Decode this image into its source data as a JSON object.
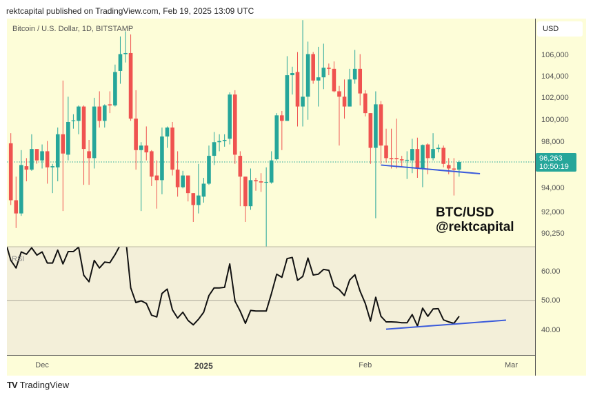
{
  "header": {
    "published": "rektcapital published on TradingView.com, Feb 19, 2025 13:09 UTC"
  },
  "legend": {
    "symbol": "Bitcoin / U.S. Dollar, 1D, BITSTAMP",
    "rsi": "RSI"
  },
  "price_axis": {
    "currency": "USD",
    "last_price": "96,263",
    "countdown": "10:50:19"
  },
  "watermark": {
    "line1": "BTC/USD",
    "line2": "@rektcapital"
  },
  "footer": {
    "brand_mark": "TV",
    "brand": "TradingView"
  },
  "colors": {
    "up": "#26a69a",
    "down": "#ef5350",
    "background": "#fdfdd8",
    "rsi_background": "#f3efd9",
    "trendline": "#3b5bdb",
    "rsi_line": "#111111"
  },
  "chart_data": {
    "type": "candlestick",
    "title": "Bitcoin / U.S. Dollar, 1D, BITSTAMP",
    "price_scale": "log",
    "ylim": [
      89500,
      109000
    ],
    "price_ticks": [
      {
        "value": 106000,
        "label": "106,000"
      },
      {
        "value": 104000,
        "label": "104,000"
      },
      {
        "value": 102000,
        "label": "102,000"
      },
      {
        "value": 100000,
        "label": "100,000"
      },
      {
        "value": 98000,
        "label": "98,000"
      },
      {
        "value": 94000,
        "label": "94,000"
      },
      {
        "value": 92000,
        "label": "92,000"
      },
      {
        "value": 90250,
        "label": "90,250"
      }
    ],
    "time_ticks": [
      {
        "date": "2024-12-01",
        "label": "Dec",
        "bold": false
      },
      {
        "date": "2025-01-01",
        "label": "2025",
        "bold": true
      },
      {
        "date": "2025-02-01",
        "label": "Feb",
        "bold": false
      },
      {
        "date": "2025-03-01",
        "label": "Mar",
        "bold": false
      }
    ],
    "last_price": 96263,
    "candle_columns": [
      "date",
      "open",
      "high",
      "low",
      "close"
    ],
    "candles": [
      [
        "2024-11-25",
        97900,
        98800,
        92600,
        93000
      ],
      [
        "2024-11-26",
        93000,
        95000,
        90700,
        91900
      ],
      [
        "2024-11-27",
        91900,
        97300,
        91700,
        96000
      ],
      [
        "2024-11-28",
        95900,
        96600,
        94600,
        95600
      ],
      [
        "2024-11-29",
        95600,
        98700,
        95500,
        97400
      ],
      [
        "2024-11-30",
        97400,
        97400,
        96100,
        96400
      ],
      [
        "2024-12-01",
        96400,
        97800,
        95700,
        97200
      ],
      [
        "2024-12-02",
        97200,
        98100,
        94400,
        95800
      ],
      [
        "2024-12-03",
        95800,
        96100,
        93600,
        95900
      ],
      [
        "2024-12-04",
        95800,
        99300,
        94600,
        98700
      ],
      [
        "2024-12-05",
        98700,
        103600,
        92100,
        97000
      ],
      [
        "2024-12-06",
        96900,
        102100,
        96400,
        99800
      ],
      [
        "2024-12-07",
        99900,
        100500,
        99200,
        99950
      ],
      [
        "2024-12-08",
        99900,
        101300,
        98700,
        101200
      ],
      [
        "2024-12-09",
        101200,
        101300,
        94300,
        97400
      ],
      [
        "2024-12-10",
        97200,
        98200,
        94300,
        96600
      ],
      [
        "2024-12-11",
        96600,
        102000,
        95700,
        101200
      ],
      [
        "2024-12-12",
        101200,
        102600,
        99300,
        99900
      ],
      [
        "2024-12-13",
        99900,
        101400,
        99300,
        101300
      ],
      [
        "2024-12-14",
        101400,
        102600,
        100600,
        101300
      ],
      [
        "2024-12-15",
        101300,
        105100,
        101200,
        104400
      ],
      [
        "2024-12-16",
        104500,
        107800,
        103300,
        106100
      ],
      [
        "2024-12-17",
        106100,
        108300,
        105300,
        106200
      ],
      [
        "2024-12-18",
        106200,
        108000,
        99900,
        100100
      ],
      [
        "2024-12-19",
        100100,
        102700,
        95600,
        97300
      ],
      [
        "2024-12-20",
        97300,
        98000,
        92100,
        97700
      ],
      [
        "2024-12-21",
        97700,
        99400,
        96400,
        97100
      ],
      [
        "2024-12-22",
        97200,
        97300,
        94200,
        95000
      ],
      [
        "2024-12-23",
        95100,
        96400,
        92300,
        94700
      ],
      [
        "2024-12-24",
        94700,
        99300,
        93500,
        98500
      ],
      [
        "2024-12-25",
        98500,
        99400,
        97500,
        99300
      ],
      [
        "2024-12-26",
        99300,
        99800,
        95100,
        95600
      ],
      [
        "2024-12-27",
        95600,
        97200,
        93300,
        94100
      ],
      [
        "2024-12-28",
        94100,
        95500,
        94000,
        95100
      ],
      [
        "2024-12-29",
        95100,
        95100,
        92900,
        93600
      ],
      [
        "2024-12-30",
        93600,
        93600,
        91200,
        92600
      ],
      [
        "2024-12-31",
        92600,
        96100,
        91900,
        93400
      ],
      [
        "2025-01-01",
        93300,
        94900,
        92800,
        94400
      ],
      [
        "2025-01-02",
        94400,
        97700,
        94300,
        96800
      ],
      [
        "2025-01-03",
        96800,
        98900,
        96000,
        98000
      ],
      [
        "2025-01-04",
        98000,
        98700,
        97200,
        98100
      ],
      [
        "2025-01-05",
        98100,
        98700,
        97600,
        98200
      ],
      [
        "2025-01-06",
        98300,
        102500,
        97800,
        102300
      ],
      [
        "2025-01-07",
        102300,
        102700,
        96100,
        96900
      ],
      [
        "2025-01-08",
        96800,
        97200,
        92500,
        95000
      ],
      [
        "2025-01-09",
        95000,
        95000,
        91200,
        92500
      ],
      [
        "2025-01-10",
        92500,
        95700,
        92200,
        94700
      ],
      [
        "2025-01-11",
        94700,
        94900,
        93800,
        94600
      ],
      [
        "2025-01-12",
        94600,
        95300,
        93700,
        94500
      ],
      [
        "2025-01-13",
        94500,
        95800,
        89100,
        94550
      ],
      [
        "2025-01-14",
        94500,
        97200,
        94400,
        96400
      ],
      [
        "2025-01-15",
        96500,
        100600,
        96400,
        100400
      ],
      [
        "2025-01-16",
        100400,
        100800,
        97300,
        99900
      ],
      [
        "2025-01-17",
        99900,
        105900,
        99900,
        104100
      ],
      [
        "2025-01-18",
        104100,
        104900,
        102300,
        104300
      ],
      [
        "2025-01-19",
        104400,
        106300,
        99400,
        101200
      ],
      [
        "2025-01-20",
        101200,
        109400,
        99400,
        102100
      ],
      [
        "2025-01-21",
        102100,
        107300,
        100000,
        106100
      ],
      [
        "2025-01-22",
        106100,
        106300,
        103300,
        103600
      ],
      [
        "2025-01-23",
        103600,
        106800,
        101200,
        103900
      ],
      [
        "2025-01-24",
        103900,
        107100,
        102800,
        104800
      ],
      [
        "2025-01-25",
        104800,
        105200,
        104100,
        104700
      ],
      [
        "2025-01-26",
        104700,
        105400,
        102500,
        102600
      ],
      [
        "2025-01-27",
        102600,
        103100,
        97700,
        102100
      ],
      [
        "2025-01-28",
        102100,
        103700,
        100100,
        101200
      ],
      [
        "2025-01-29",
        101200,
        104700,
        101200,
        103700
      ],
      [
        "2025-01-30",
        103700,
        106500,
        103300,
        104700
      ],
      [
        "2025-01-31",
        104700,
        106100,
        101300,
        102400
      ],
      [
        "2025-02-01",
        102400,
        102700,
        100300,
        100600
      ],
      [
        "2025-02-02",
        100600,
        100600,
        96100,
        97500
      ],
      [
        "2025-02-03",
        97500,
        102600,
        91500,
        101400
      ],
      [
        "2025-02-04",
        101400,
        101700,
        96100,
        97700
      ],
      [
        "2025-02-05",
        97700,
        99200,
        96200,
        96600
      ],
      [
        "2025-02-06",
        96600,
        99200,
        95700,
        96500
      ],
      [
        "2025-02-07",
        96600,
        100100,
        95700,
        96500
      ],
      [
        "2025-02-08",
        96500,
        96800,
        95800,
        96400
      ],
      [
        "2025-02-09",
        96400,
        97200,
        94800,
        96450
      ],
      [
        "2025-02-10",
        96400,
        98300,
        95300,
        97400
      ],
      [
        "2025-02-11",
        97400,
        98400,
        94900,
        95700
      ],
      [
        "2025-02-12",
        95700,
        97800,
        94100,
        97750
      ],
      [
        "2025-02-13",
        97800,
        97900,
        95200,
        96600
      ],
      [
        "2025-02-14",
        96600,
        98800,
        96400,
        97400
      ],
      [
        "2025-02-15",
        97400,
        97800,
        97100,
        97500
      ],
      [
        "2025-02-16",
        97500,
        97700,
        95800,
        96100
      ],
      [
        "2025-02-17",
        96000,
        96600,
        95200,
        95700
      ],
      [
        "2025-02-18",
        95700,
        96600,
        93400,
        95600
      ],
      [
        "2025-02-19",
        95600,
        96400,
        95000,
        96263
      ]
    ],
    "price_trendline": {
      "from": {
        "date": "2025-02-04",
        "value": 96000
      },
      "to": {
        "date": "2025-02-23",
        "value": 95250
      }
    },
    "rsi": {
      "label": "RSI",
      "ylim": [
        31,
        68.5
      ],
      "ticks": [
        {
          "value": 60,
          "label": "60.00"
        },
        {
          "value": 50,
          "label": "50.00"
        },
        {
          "value": 40,
          "label": "40.00"
        }
      ],
      "midline": 50,
      "values": [
        63.7,
        61.1,
        66.6,
        65.8,
        68.0,
        65.5,
        66.6,
        62.8,
        62.8,
        67.2,
        62.5,
        66.7,
        66.7,
        68.2,
        58.6,
        56.4,
        63.7,
        61.1,
        63.1,
        62.9,
        65.7,
        69.0,
        72.0,
        54.3,
        49.3,
        49.9,
        49.0,
        45.0,
        44.4,
        52.4,
        53.9,
        46.8,
        44.0,
        46.0,
        43.2,
        41.7,
        43.6,
        46.0,
        51.7,
        54.3,
        54.3,
        54.5,
        62.5,
        49.8,
        46.4,
        42.2,
        46.6,
        46.4,
        46.4,
        46.4,
        52.4,
        59.0,
        57.9,
        64.3,
        64.7,
        56.9,
        58.2,
        64.5,
        58.7,
        59.0,
        60.6,
        60.3,
        54.9,
        53.7,
        51.7,
        57.0,
        58.8,
        53.2,
        49.0,
        43.0,
        51.1,
        44.6,
        42.7,
        42.7,
        42.6,
        42.4,
        42.4,
        45.2,
        41.3,
        47.4,
        44.6,
        47.1,
        47.2,
        43.4,
        42.7,
        42.2,
        44.6
      ],
      "trendline": {
        "from": {
          "date": "2025-02-05",
          "value": 40.2
        },
        "to": {
          "date": "2025-02-28",
          "value": 43.3
        }
      }
    }
  }
}
